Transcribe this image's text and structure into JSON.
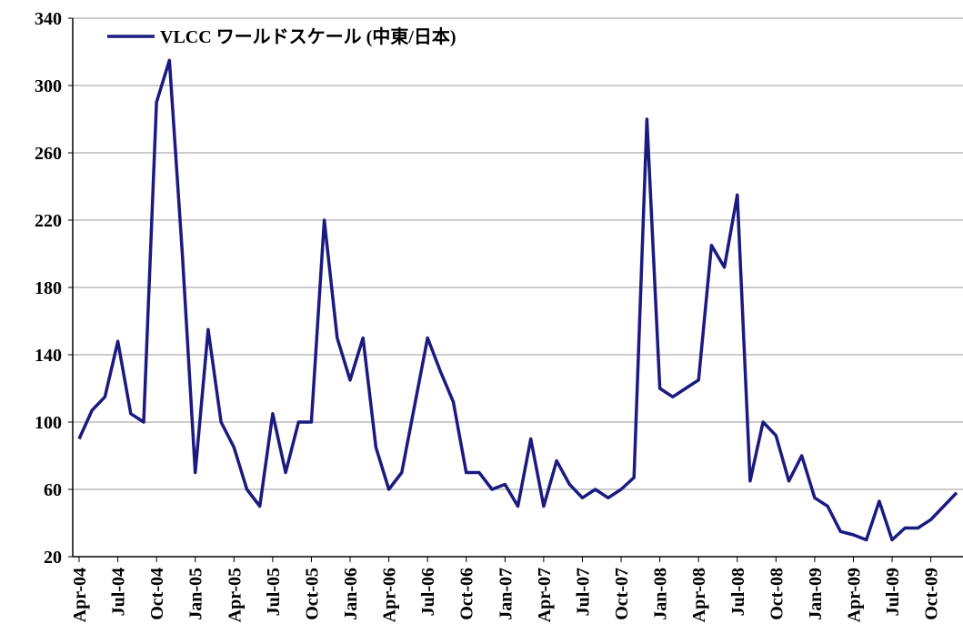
{
  "chart_data": {
    "type": "line",
    "categories": [
      "Apr-04",
      null,
      null,
      "Jul-04",
      null,
      null,
      "Oct-04",
      null,
      null,
      "Jan-05",
      null,
      null,
      "Apr-05",
      null,
      null,
      "Jul-05",
      null,
      null,
      "Oct-05",
      null,
      null,
      "Jan-06",
      null,
      null,
      "Apr-06",
      null,
      null,
      "Jul-06",
      null,
      null,
      "Oct-06",
      null,
      null,
      "Jan-07",
      null,
      null,
      "Apr-07",
      null,
      null,
      "Jul-07",
      null,
      null,
      "Oct-07",
      null,
      null,
      "Jan-08",
      null,
      null,
      "Apr-08",
      null,
      null,
      "Jul-08",
      null,
      null,
      "Oct-08",
      null,
      null,
      "Jan-09",
      null,
      null,
      "Apr-09",
      null,
      null,
      "Jul-09",
      null,
      null,
      "Oct-09",
      null,
      null
    ],
    "series": [
      {
        "name": "VLCC ワールドスケール (中東/日本)",
        "color": "#1a1a80",
        "values": [
          90,
          107,
          115,
          148,
          105,
          100,
          290,
          315,
          200,
          70,
          155,
          100,
          85,
          60,
          50,
          105,
          70,
          100,
          100,
          220,
          150,
          125,
          150,
          85,
          60,
          70,
          110,
          150,
          130,
          112,
          70,
          70,
          60,
          63,
          50,
          90,
          50,
          77,
          63,
          55,
          60,
          55,
          60,
          67,
          280,
          120,
          115,
          120,
          125,
          205,
          192,
          235,
          65,
          100,
          92,
          65,
          80,
          55,
          50,
          35,
          33,
          30,
          53,
          30,
          37,
          37,
          42,
          50,
          58
        ]
      }
    ],
    "ylim": [
      20,
      340
    ],
    "yticks": [
      20,
      60,
      100,
      140,
      180,
      220,
      260,
      300,
      340
    ],
    "grid": true,
    "legend": "top-left"
  }
}
